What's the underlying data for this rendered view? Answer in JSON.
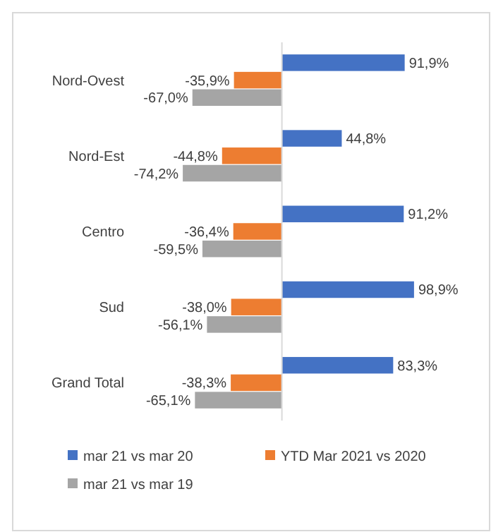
{
  "chart_data": {
    "type": "bar",
    "orientation": "horizontal",
    "categories": [
      "Nord-Ovest",
      "Nord-Est",
      "Centro",
      "Sud",
      "Grand Total"
    ],
    "legend": "bottom",
    "series": [
      {
        "name": "mar 21 vs mar 20",
        "color": "#4472c4",
        "values": [
          91.9,
          44.8,
          91.2,
          98.9,
          83.3
        ],
        "value_labels": [
          "91,9%",
          "44,8%",
          "91,2%",
          "98,9%",
          "83,3%"
        ]
      },
      {
        "name": "YTD Mar 2021 vs 2020",
        "color": "#ed7d31",
        "values": [
          -35.9,
          -44.8,
          -36.4,
          -38.0,
          -38.3
        ],
        "value_labels": [
          "-35,9%",
          "-44,8%",
          "-36,4%",
          "-38,0%",
          "-38,3%"
        ]
      },
      {
        "name": "mar 21 vs mar 19",
        "color": "#a5a5a5",
        "values": [
          -67.0,
          -74.2,
          -59.5,
          -56.1,
          -65.1
        ],
        "value_labels": [
          "-67,0%",
          "-74,2%",
          "-59,5%",
          "-56,1%",
          "-65,1%"
        ]
      }
    ]
  }
}
